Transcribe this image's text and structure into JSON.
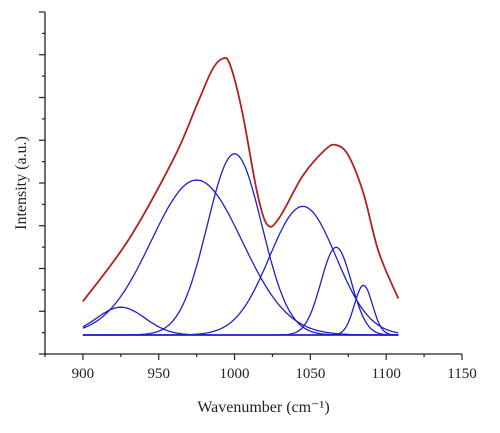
{
  "chart_data": {
    "type": "line",
    "xlabel": "Wavenumber (cm⁻¹)",
    "ylabel": "Intensity (a.u.)",
    "xlim": [
      875,
      1150
    ],
    "ylim": [
      -0.05,
      1.12
    ],
    "x_ticks": [
      900,
      950,
      1000,
      1050,
      1100,
      1150
    ],
    "y_tick_labels_shown": false,
    "grid": false,
    "legend": "none",
    "colors": {
      "sum": "#b22222",
      "components": "#1f1fcc"
    },
    "x_range_plotted": [
      900,
      1108
    ],
    "baseline": 0.015,
    "series": [
      {
        "role": "sum",
        "points": [
          [
            900,
            0.13
          ],
          [
            930,
            0.34
          ],
          [
            960,
            0.62
          ],
          [
            975,
            0.8
          ],
          [
            985,
            0.92
          ],
          [
            992,
            0.96
          ],
          [
            997,
            0.94
          ],
          [
            1005,
            0.78
          ],
          [
            1015,
            0.5
          ],
          [
            1022,
            0.39
          ],
          [
            1030,
            0.42
          ],
          [
            1045,
            0.56
          ],
          [
            1060,
            0.65
          ],
          [
            1067,
            0.665
          ],
          [
            1075,
            0.63
          ],
          [
            1085,
            0.5
          ],
          [
            1095,
            0.3
          ],
          [
            1108,
            0.14
          ]
        ]
      },
      {
        "role": "component",
        "center": 925,
        "height": 0.095,
        "width": 16
      },
      {
        "role": "component",
        "center": 975,
        "height": 0.53,
        "width": 30
      },
      {
        "role": "component",
        "center": 1000,
        "height": 0.62,
        "width": 18
      },
      {
        "role": "component",
        "center": 1045,
        "height": 0.44,
        "width": 22
      },
      {
        "role": "component",
        "center": 1067,
        "height": 0.3,
        "width": 10
      },
      {
        "role": "component",
        "center": 1085,
        "height": 0.17,
        "width": 6
      }
    ]
  }
}
